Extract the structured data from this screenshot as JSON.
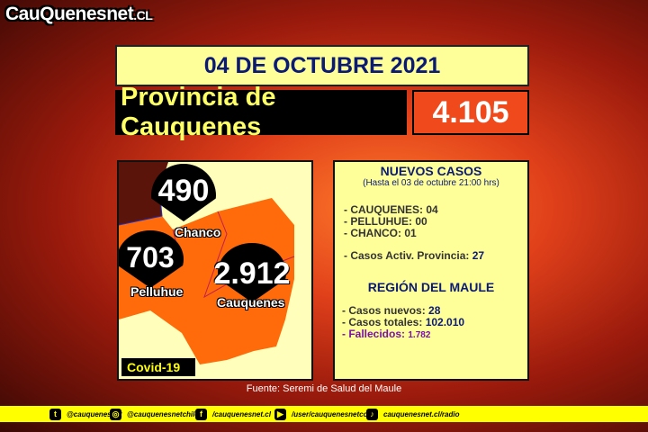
{
  "logo": {
    "main": "CauQuenes",
    "net": "net",
    ".cl": ".CL"
  },
  "date": "04 DE OCTUBRE 2021",
  "province": {
    "label": "Provincia de Cauquenes",
    "total": "4.105"
  },
  "map": {
    "pins": [
      {
        "name": "Chanco",
        "value": "490"
      },
      {
        "name": "Pelluhue",
        "value": "703"
      },
      {
        "name": "Cauquenes",
        "value": "2.912"
      }
    ],
    "badge": "Covid-19",
    "region_color": "#ff6a0a"
  },
  "info": {
    "title": "NUEVOS CASOS",
    "subtitle": "(Hasta el 03 de octubre  21:00 hrs)",
    "new_cases": [
      {
        "label": "- CAUQUENES: ",
        "value": "04"
      },
      {
        "label": "- PELLUHUE: ",
        "value": "00"
      },
      {
        "label": "- CHANCO: ",
        "value": "01"
      }
    ],
    "active": {
      "label": "- Casos Activ. Provincia: ",
      "value": "27"
    },
    "region_title": "REGIÓN DEL MAULE",
    "region": [
      {
        "label": "- Casos nuevos: ",
        "value": "28"
      },
      {
        "label": "- Casos totales: ",
        "value": "102.010"
      },
      {
        "label": "- Fallecidos: ",
        "value": "1.782"
      }
    ]
  },
  "source": "Fuente: Seremi de Salud del Maule",
  "footer": [
    {
      "icon": "twitter-icon",
      "text": "@cauquenesnet"
    },
    {
      "icon": "instagram-icon",
      "text": "@cauquenesnetchile"
    },
    {
      "icon": "facebook-icon",
      "text": "/cauquenesnet.cl"
    },
    {
      "icon": "youtube-icon",
      "text": "/user/cauquenesnetcom"
    },
    {
      "icon": "radio-icon",
      "text": "cauquenesnet.cl/radio"
    }
  ]
}
